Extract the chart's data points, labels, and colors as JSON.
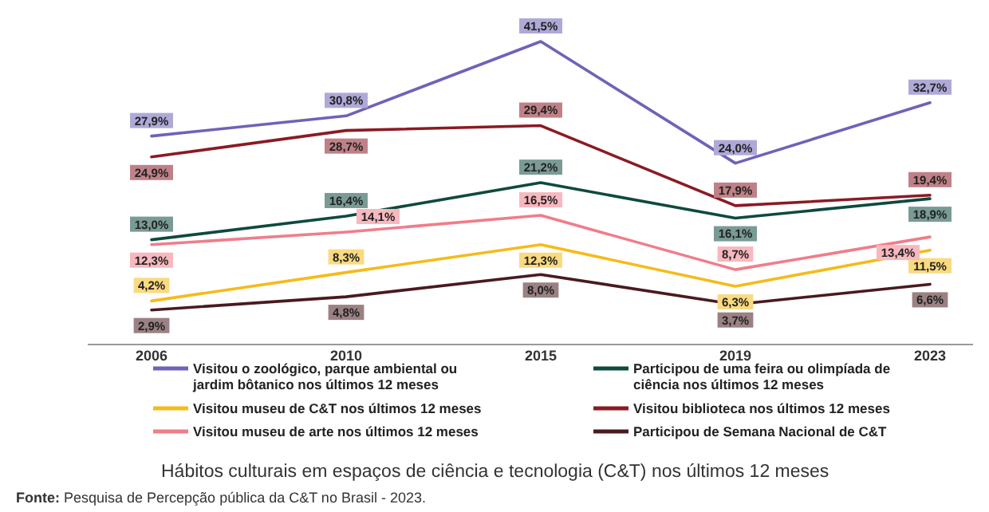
{
  "chart_data": {
    "type": "line",
    "title": "Hábitos culturais em espaços de ciência e tecnologia (C&T) nos últimos 12 meses",
    "annotations": [
      "Fonte: Pesquisa de Percepção pública da C&T no Brasil - 2023."
    ],
    "categories": [
      "2006",
      "2010",
      "2015",
      "2019",
      "2023"
    ],
    "tick_labels": "x",
    "legend": "bottom",
    "marker": "none",
    "line_style": "solid",
    "series": [
      {
        "name": "Visitou o zoológico, parque ambiental ou jardim bôtanico nos últimos 12 meses",
        "color": "#6e63b8",
        "values": [
          27.9,
          30.8,
          41.5,
          24.0,
          32.7
        ],
        "value_labels": [
          "27,9%",
          "30,8%",
          "41,5%",
          "24,0%",
          "32,7%"
        ]
      },
      {
        "name": "Participou de uma feira ou olimpíada de ciência nos últimos 12 meses",
        "color": "#0e4a3e",
        "values": [
          13.0,
          16.4,
          21.2,
          16.1,
          18.9
        ],
        "value_labels": [
          "13,0%",
          "16,4%",
          "21,2%",
          "16,1%",
          "18,9%"
        ]
      },
      {
        "name": "Visitou museu de C&T nos últimos 12 meses",
        "color": "#f5bb1a",
        "values": [
          4.2,
          8.3,
          12.3,
          6.3,
          11.5
        ],
        "value_labels": [
          "4,2%",
          "8,3%",
          "12,3%",
          "6,3%",
          "11,5%"
        ]
      },
      {
        "name": "Visitou biblioteca nos últimos 12 meses",
        "color": "#8b1a24",
        "values": [
          24.9,
          28.7,
          29.4,
          17.9,
          19.4
        ],
        "value_labels": [
          "24,9%",
          "28,7%",
          "29,4%",
          "17,9%",
          "19,4%"
        ]
      },
      {
        "name": "Visitou museu de arte nos últimos 12 meses",
        "color": "#f07d8a",
        "values": [
          12.3,
          14.1,
          16.5,
          8.7,
          13.4
        ],
        "value_labels": [
          "12,3%",
          "14,1%",
          "16,5%",
          "8,7%",
          "13,4%"
        ]
      },
      {
        "name": "Participou de Semana Nacional de C&T",
        "color": "#4a1a1e",
        "values": [
          2.9,
          4.8,
          8.0,
          3.7,
          6.6
        ],
        "value_labels": [
          "2,9%",
          "4,8%",
          "8,0%",
          "3,7%",
          "6,6%"
        ]
      }
    ]
  }
}
